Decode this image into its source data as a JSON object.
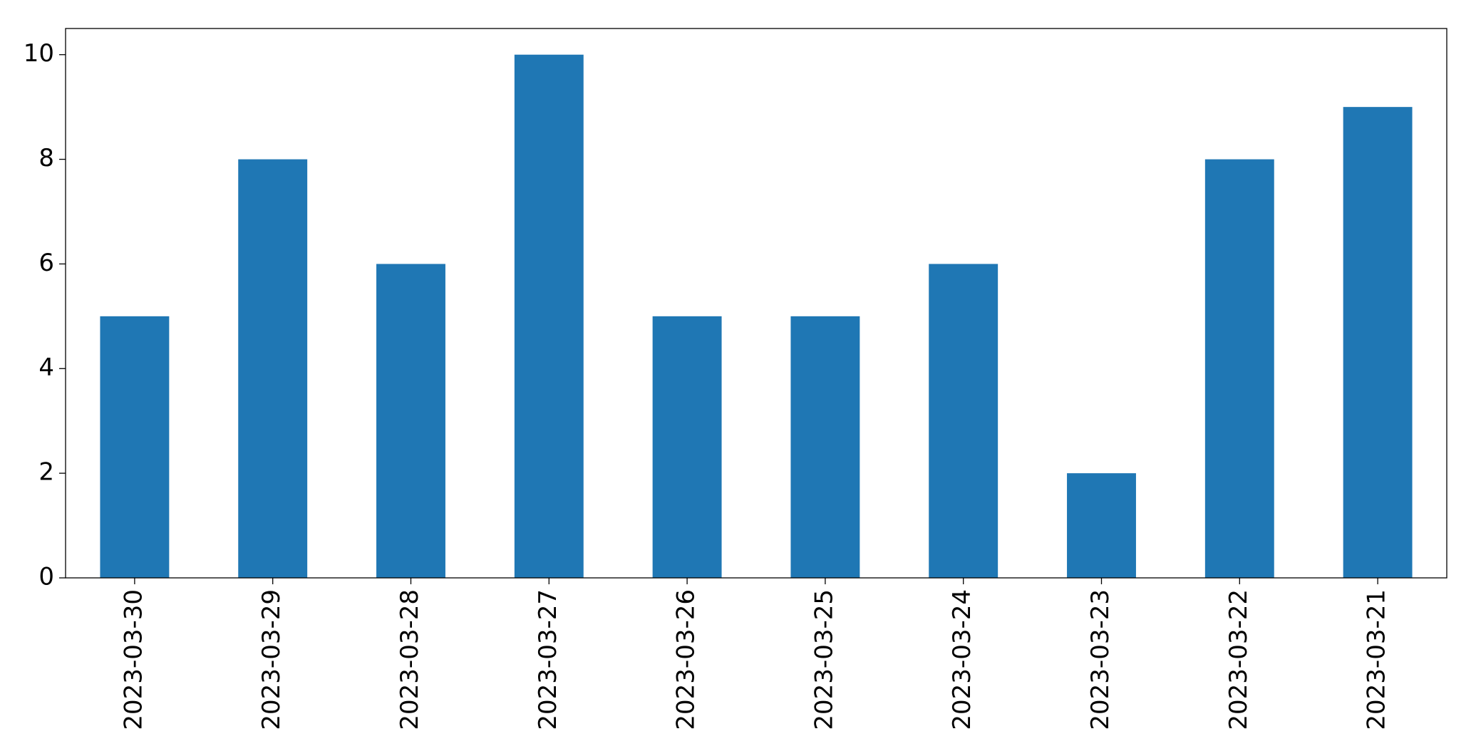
{
  "chart_data": {
    "type": "bar",
    "categories": [
      "2023-03-30",
      "2023-03-29",
      "2023-03-28",
      "2023-03-27",
      "2023-03-26",
      "2023-03-25",
      "2023-03-24",
      "2023-03-23",
      "2023-03-22",
      "2023-03-21"
    ],
    "values": [
      5,
      8,
      6,
      10,
      5,
      5,
      6,
      2,
      8,
      9
    ],
    "color": "#1f77b4",
    "ylim": [
      0,
      10.5
    ],
    "yticks": [
      0,
      2,
      4,
      6,
      8,
      10
    ]
  }
}
